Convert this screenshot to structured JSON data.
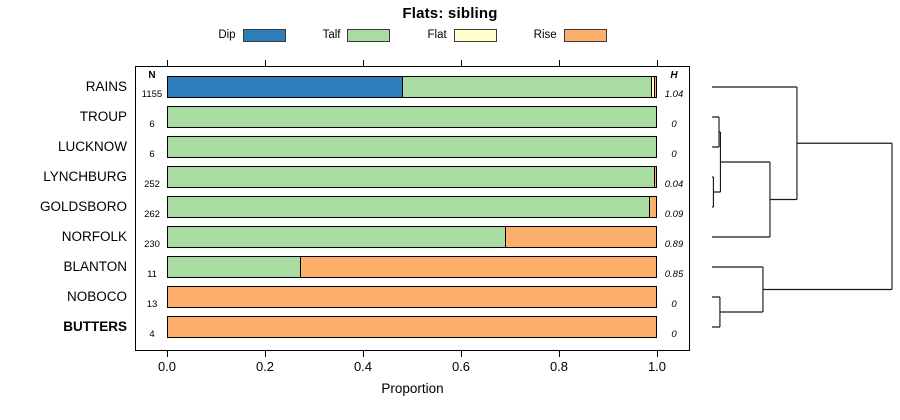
{
  "chart_data": {
    "type": "bar",
    "orientation": "horizontal",
    "stacked": true,
    "title": "Flats: sibling",
    "xlabel": "Proportion",
    "xlim": [
      0,
      1
    ],
    "xticks": [
      "0.0",
      "0.2",
      "0.4",
      "0.6",
      "0.8",
      "1.0"
    ],
    "grid": false,
    "legend_position": "top",
    "n_column_header": "N",
    "h_column_header": "H",
    "legend": [
      {
        "label": "Dip",
        "color": "#2E7EBC"
      },
      {
        "label": "Talf",
        "color": "#A9DCA2"
      },
      {
        "label": "Flat",
        "color": "#FFFFCC"
      },
      {
        "label": "Rise",
        "color": "#FCAE6B"
      }
    ],
    "rows": [
      {
        "label": "RAINS",
        "n": "1155",
        "h": "1.04",
        "bold": false,
        "segments": [
          {
            "name": "Dip",
            "value": 0.48
          },
          {
            "name": "Talf",
            "value": 0.51
          },
          {
            "name": "Flat",
            "value": 0.005
          },
          {
            "name": "Rise",
            "value": 0.005
          }
        ]
      },
      {
        "label": "TROUP",
        "n": "6",
        "h": "0",
        "bold": false,
        "segments": [
          {
            "name": "Talf",
            "value": 1.0
          }
        ]
      },
      {
        "label": "LUCKNOW",
        "n": "6",
        "h": "0",
        "bold": false,
        "segments": [
          {
            "name": "Talf",
            "value": 1.0
          }
        ]
      },
      {
        "label": "LYNCHBURG",
        "n": "252",
        "h": "0.04",
        "bold": false,
        "segments": [
          {
            "name": "Talf",
            "value": 0.995
          },
          {
            "name": "Rise",
            "value": 0.005
          }
        ]
      },
      {
        "label": "GOLDSBORO",
        "n": "262",
        "h": "0.09",
        "bold": false,
        "segments": [
          {
            "name": "Talf",
            "value": 0.985
          },
          {
            "name": "Rise",
            "value": 0.015
          }
        ]
      },
      {
        "label": "NORFOLK",
        "n": "230",
        "h": "0.89",
        "bold": false,
        "segments": [
          {
            "name": "Talf",
            "value": 0.69
          },
          {
            "name": "Rise",
            "value": 0.31
          }
        ]
      },
      {
        "label": "BLANTON",
        "n": "11",
        "h": "0.85",
        "bold": false,
        "segments": [
          {
            "name": "Talf",
            "value": 0.27
          },
          {
            "name": "Rise",
            "value": 0.73
          }
        ]
      },
      {
        "label": "NOBOCO",
        "n": "13",
        "h": "0",
        "bold": false,
        "segments": [
          {
            "name": "Rise",
            "value": 1.0
          }
        ]
      },
      {
        "label": "BUTTERS",
        "n": "4",
        "h": "0",
        "bold": true,
        "segments": [
          {
            "name": "Rise",
            "value": 1.0
          }
        ]
      }
    ],
    "dendrogram": {
      "h": 1.0,
      "children": [
        {
          "h": 0.472,
          "children": [
            {
              "leaf": "RAINS"
            },
            {
              "h": 0.322,
              "children": [
                {
                  "h": 0.047,
                  "children": [
                    {
                      "h": 0.039,
                      "children": [
                        {
                          "leaf": "TROUP"
                        },
                        {
                          "leaf": "LUCKNOW"
                        }
                      ]
                    },
                    {
                      "h": 0.008,
                      "children": [
                        {
                          "leaf": "LYNCHBURG"
                        },
                        {
                          "leaf": "GOLDSBORO"
                        }
                      ]
                    }
                  ]
                },
                {
                  "leaf": "NORFOLK"
                }
              ]
            }
          ]
        },
        {
          "h": 0.283,
          "children": [
            {
              "leaf": "BLANTON"
            },
            {
              "h": 0.044,
              "children": [
                {
                  "leaf": "NOBOCO"
                },
                {
                  "leaf": "BUTTERS"
                }
              ]
            }
          ]
        }
      ]
    }
  }
}
